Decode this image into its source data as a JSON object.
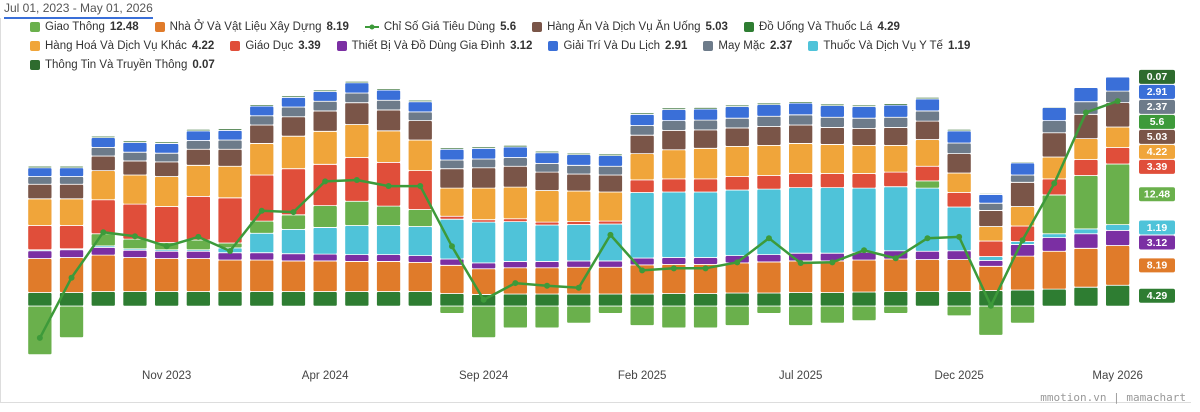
{
  "date_range": "Jul 01, 2023 - May 01, 2026",
  "watermark": "mmotion.vn | mamachart",
  "chart_data": {
    "type": "bar",
    "stacked": true,
    "categories": [
      null,
      null,
      null,
      null,
      "Nov 2023",
      null,
      null,
      null,
      null,
      "Apr 2024",
      null,
      null,
      null,
      null,
      "Sep 2024",
      null,
      null,
      null,
      null,
      "Feb 2025",
      null,
      null,
      null,
      null,
      "Jul 2025",
      null,
      null,
      null,
      null,
      "Dec 2025",
      null,
      null,
      null,
      null,
      "May 2026"
    ],
    "ylim": [
      -11.1,
      47.6
    ],
    "y2lim": [
      1.73,
      5.99
    ],
    "series": [
      {
        "name": "Giao Thông",
        "color": "#6ab04c",
        "values": [
          -10,
          -6.5,
          2.5,
          2.0,
          1.5,
          2.0,
          1.0,
          2.5,
          3.0,
          4.5,
          5.0,
          4.0,
          3.5,
          -1.5,
          -6.5,
          -4.5,
          -4.5,
          -3.5,
          -1.5,
          -4.0,
          -4.5,
          -4.5,
          -4.0,
          -1.5,
          -4.0,
          -3.5,
          -3.0,
          -1.5,
          1.5,
          -2.0,
          -6.0,
          -3.5,
          8.0,
          11.0,
          12.48
        ]
      },
      {
        "name": "Nhà Ở Và Vật Liệu Xây Dựng",
        "color": "#e07b2a",
        "values": [
          7.0,
          7.2,
          7.5,
          7.0,
          6.8,
          6.8,
          6.5,
          6.5,
          6.3,
          6.3,
          6.2,
          6.2,
          6.0,
          5.8,
          5.3,
          5.4,
          5.4,
          5.5,
          5.5,
          6.0,
          6.0,
          6.0,
          6.2,
          6.4,
          6.5,
          6.5,
          6.6,
          6.7,
          6.6,
          6.6,
          5.0,
          7.0,
          7.8,
          8.0,
          8.19
        ]
      },
      {
        "name": "Chỉ Số Giá Tiêu Dùng",
        "color": "#3d9a3a",
        "type": "line",
        "axis": "y2",
        "values": [
          2.06,
          2.96,
          3.64,
          3.58,
          3.43,
          3.57,
          3.36,
          3.96,
          3.94,
          4.4,
          4.42,
          4.33,
          4.33,
          3.43,
          2.63,
          2.88,
          2.84,
          2.81,
          3.6,
          3.07,
          3.1,
          3.1,
          3.19,
          3.55,
          3.18,
          3.19,
          3.37,
          3.25,
          3.55,
          3.57,
          2.54,
          3.52,
          4.37,
          5.43,
          5.6
        ]
      },
      {
        "name": "Hàng Ăn Và Dịch Vụ Ăn Uống",
        "color": "#7a5548",
        "values": [
          3.0,
          3.0,
          3.0,
          2.9,
          3.0,
          3.3,
          3.5,
          3.8,
          4.0,
          4.2,
          4.5,
          4.3,
          4.0,
          4.0,
          4.2,
          4.3,
          3.8,
          3.5,
          3.5,
          3.8,
          4.0,
          3.8,
          3.8,
          3.9,
          3.8,
          3.5,
          3.5,
          3.7,
          3.8,
          4.0,
          3.3,
          5.0,
          5.0,
          5.0,
          5.03
        ]
      },
      {
        "name": "Đồ Uống Và Thuốc Lá",
        "color": "#2e7d32",
        "values": [
          2.8,
          2.8,
          3.0,
          3.0,
          3.0,
          3.0,
          3.0,
          3.0,
          3.0,
          3.0,
          3.0,
          3.0,
          3.0,
          2.6,
          2.4,
          2.5,
          2.5,
          2.5,
          2.5,
          2.5,
          2.6,
          2.6,
          2.7,
          2.7,
          2.8,
          2.8,
          2.9,
          3.0,
          3.0,
          3.0,
          3.2,
          3.3,
          3.5,
          3.9,
          4.29
        ]
      },
      {
        "name": "Hàng Hoá Và Dịch Vụ Khác",
        "color": "#f0a53a",
        "values": [
          5.5,
          5.5,
          6.0,
          6.0,
          6.2,
          6.4,
          6.5,
          6.5,
          6.7,
          6.8,
          6.8,
          6.5,
          6.3,
          5.8,
          6.5,
          6.5,
          6.5,
          6.3,
          6.0,
          5.4,
          6.0,
          6.3,
          6.2,
          6.2,
          6.2,
          6.0,
          5.8,
          5.5,
          5.5,
          4.0,
          3.0,
          4.0,
          4.5,
          4.3,
          4.22
        ]
      },
      {
        "name": "Giáo Dục",
        "color": "#e04e3a",
        "values": [
          5.0,
          4.8,
          7.0,
          7.2,
          7.4,
          9.0,
          9.3,
          9.5,
          9.5,
          8.5,
          9.0,
          9.0,
          8.0,
          0.6,
          0.5,
          0.6,
          0.6,
          0.6,
          0.6,
          2.6,
          2.7,
          2.7,
          2.8,
          2.8,
          2.9,
          2.9,
          3.0,
          3.0,
          3.0,
          3.0,
          3.2,
          3.2,
          3.3,
          3.3,
          3.39
        ]
      },
      {
        "name": "Thiết Bị Và Đồ Dùng Gia Đình",
        "color": "#7b2fa3",
        "values": [
          1.6,
          1.6,
          1.6,
          1.5,
          1.5,
          1.5,
          1.5,
          1.5,
          1.5,
          1.4,
          1.4,
          1.4,
          1.4,
          1.3,
          1.2,
          1.3,
          1.3,
          1.3,
          1.3,
          1.4,
          1.4,
          1.4,
          1.5,
          1.5,
          1.6,
          1.6,
          1.6,
          1.7,
          1.7,
          1.8,
          1.2,
          2.4,
          2.8,
          3.0,
          3.12
        ]
      },
      {
        "name": "Giải Trí Và Du Lịch",
        "color": "#3a6fd8",
        "values": [
          1.8,
          1.8,
          2.0,
          2.0,
          2.0,
          2.0,
          2.0,
          2.0,
          2.0,
          2.0,
          2.1,
          2.1,
          2.1,
          2.2,
          2.2,
          2.2,
          2.2,
          2.2,
          2.2,
          2.3,
          2.3,
          2.3,
          2.4,
          2.4,
          2.4,
          2.4,
          2.4,
          2.5,
          2.5,
          2.5,
          1.8,
          2.5,
          2.7,
          2.9,
          2.91
        ]
      },
      {
        "name": "May Mặc",
        "color": "#6d7b8a",
        "values": [
          1.6,
          1.6,
          1.8,
          1.8,
          1.8,
          1.8,
          1.9,
          1.9,
          2.0,
          2.0,
          2.0,
          2.0,
          1.8,
          1.8,
          1.8,
          1.8,
          1.8,
          1.8,
          1.8,
          2.0,
          2.0,
          2.0,
          2.0,
          2.1,
          2.1,
          2.1,
          2.1,
          2.1,
          2.1,
          2.2,
          1.5,
          1.5,
          2.5,
          2.6,
          2.37
        ]
      },
      {
        "name": "Thuốc Và Dịch Vụ Y Tế",
        "color": "#4fc3d9",
        "values": [
          0.2,
          0.2,
          0.3,
          0.3,
          0.3,
          0.3,
          1.0,
          4.0,
          5.0,
          5.5,
          6.0,
          6.0,
          6.0,
          8.2,
          8.4,
          8.2,
          7.5,
          7.5,
          7.6,
          13.5,
          13.5,
          13.5,
          13.5,
          13.5,
          13.5,
          13.5,
          13.2,
          13.2,
          13.0,
          9.0,
          0.8,
          0.6,
          0.8,
          1.0,
          1.19
        ]
      },
      {
        "name": "Thông Tin Và Truyền Thông",
        "color": "#2e6b2e",
        "values": [
          0.3,
          0.3,
          0.3,
          0.3,
          0.3,
          0.3,
          0.3,
          0.3,
          0.3,
          0.3,
          0.3,
          0.3,
          0.3,
          0.3,
          0.3,
          0.3,
          0.3,
          0.3,
          0.3,
          0.3,
          0.3,
          0.3,
          0.3,
          0.3,
          0.3,
          0.3,
          0.3,
          0.3,
          0.3,
          0.3,
          0.2,
          0.2,
          0.2,
          0.1,
          0.07
        ]
      }
    ]
  }
}
